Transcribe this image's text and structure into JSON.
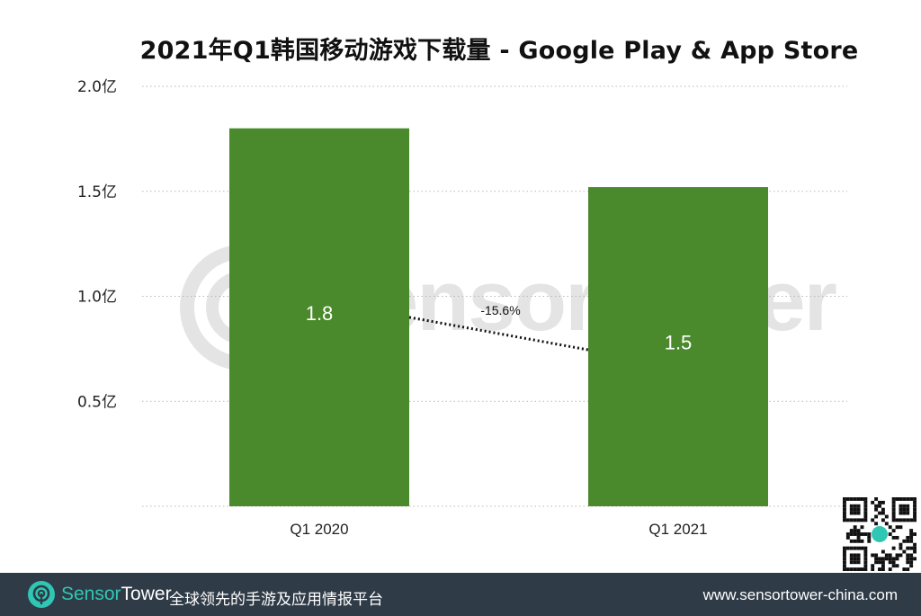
{
  "chart_data": {
    "type": "bar",
    "title": "2021年Q1韩国移动游戏下载量 - Google Play & App Store",
    "categories": [
      "Q1 2020",
      "Q1 2021"
    ],
    "values": [
      1.8,
      1.52
    ],
    "data_labels": [
      "1.8",
      "1.5"
    ],
    "y_ticks": [
      0.5,
      1.0,
      1.5,
      2.0
    ],
    "y_tick_labels": [
      "0.5亿",
      "1.0亿",
      "1.5亿",
      "2.0亿"
    ],
    "ylim": [
      0,
      2.0
    ],
    "xlabel": "",
    "ylabel": "",
    "grid": true,
    "bar_color": "#4a8a2c",
    "annotation": {
      "text": "-15.6%",
      "type": "dotted-trend-line"
    }
  },
  "watermark": {
    "text": "SensorTower"
  },
  "footer": {
    "brand_part1": "Sensor",
    "brand_part2": "Tower",
    "tagline": "全球领先的手游及应用情报平台",
    "url": "www.sensortower-china.com",
    "background_color": "#2f3b47",
    "brand_color": "#2fc6b3"
  }
}
